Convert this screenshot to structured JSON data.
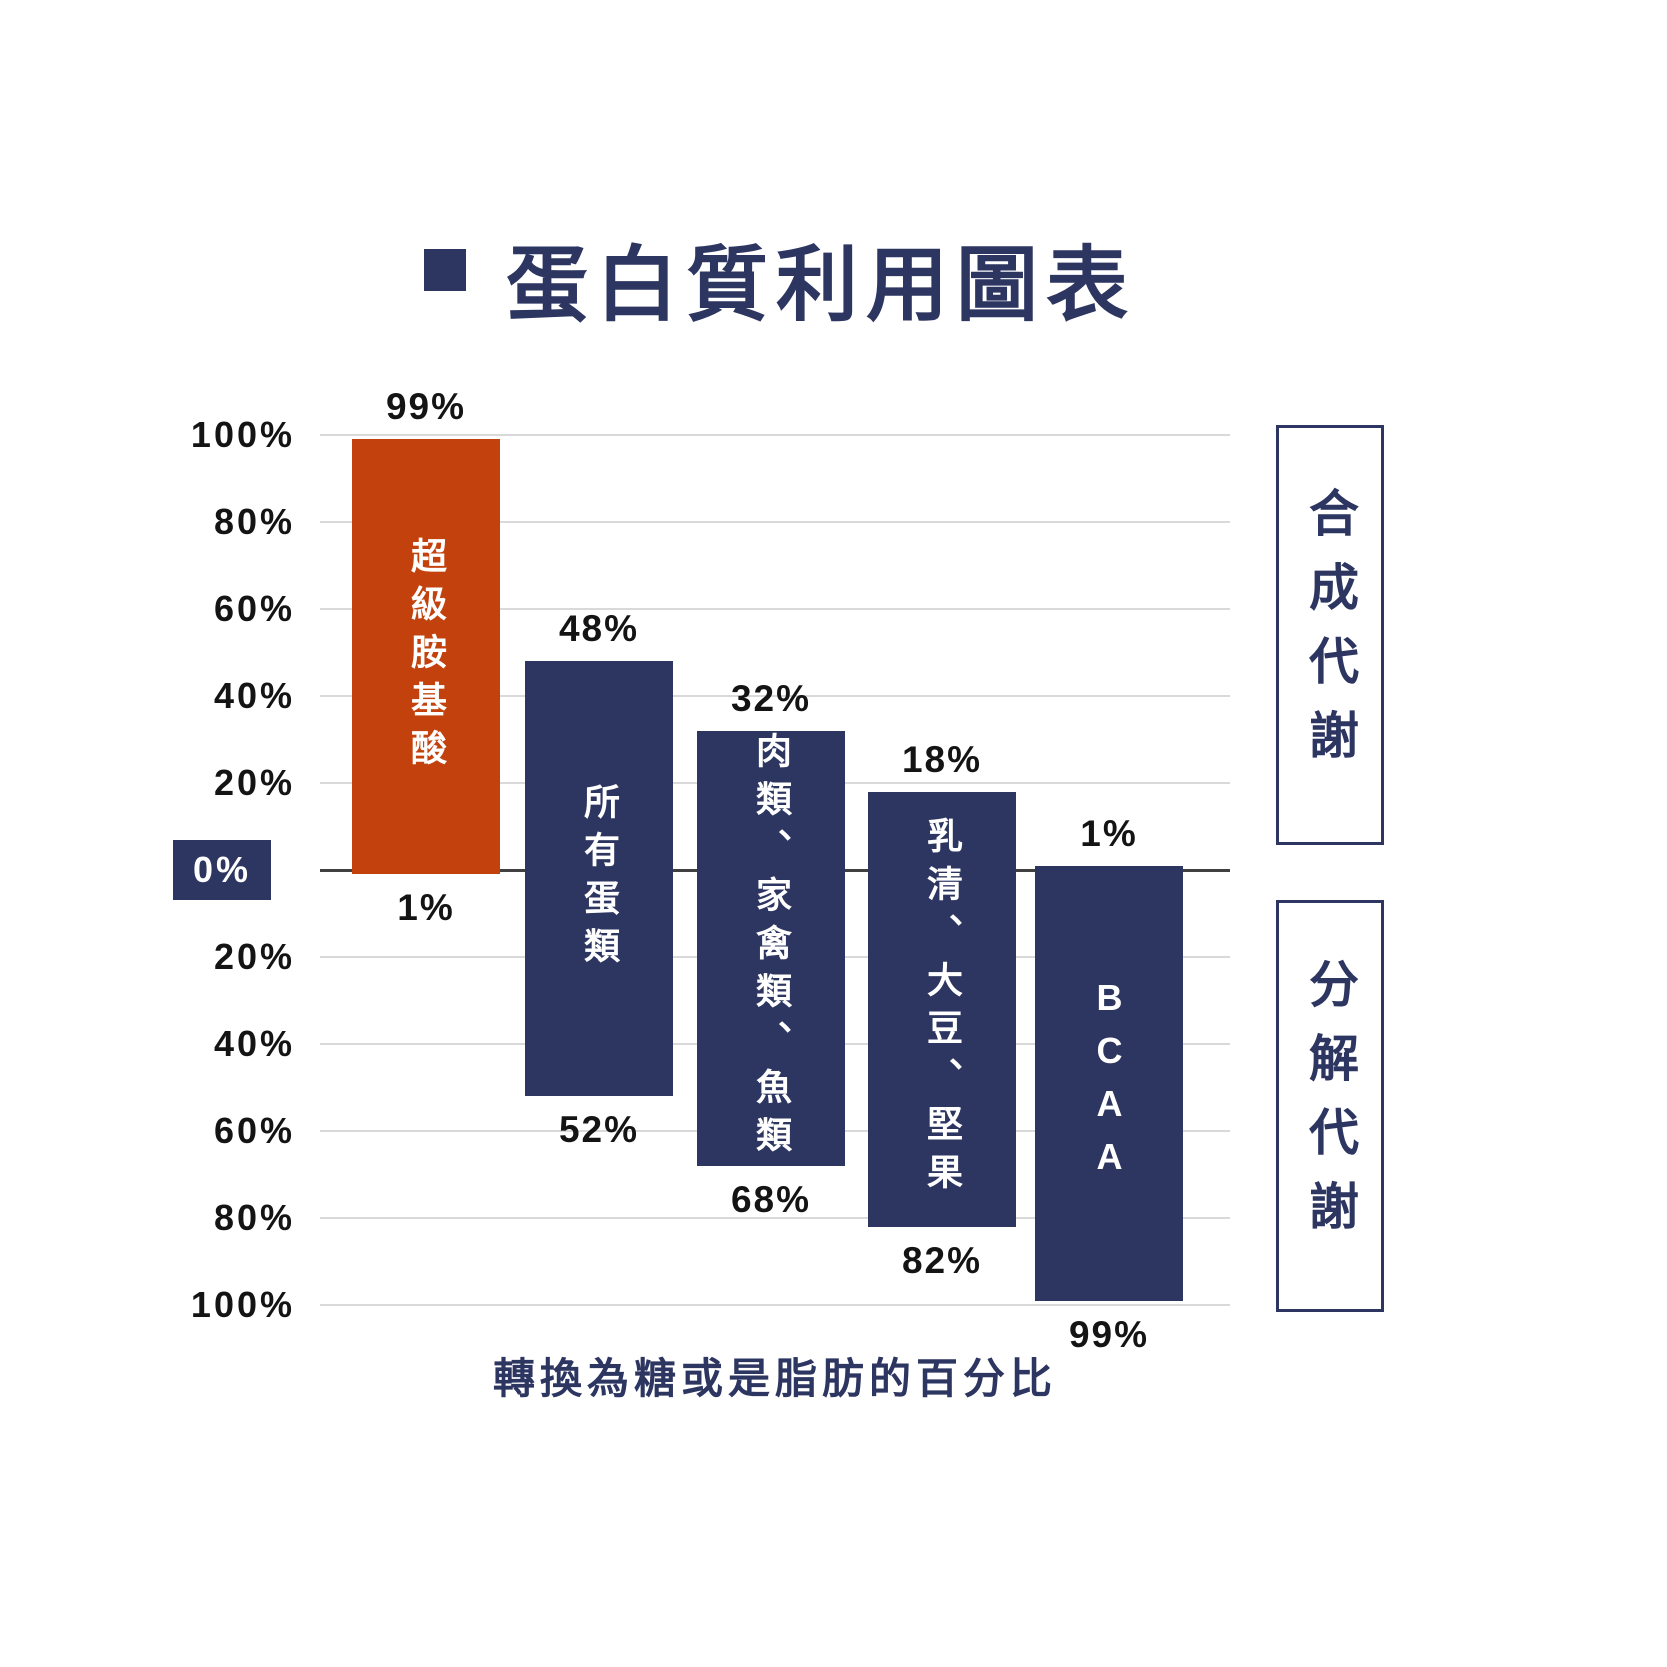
{
  "title": {
    "bullet": "■",
    "text": "蛋白質利用圖表"
  },
  "colors": {
    "navy": "#2d3561",
    "orange": "#c2410c",
    "grid": "#d9d9d9",
    "zero_line": "#404040",
    "label_text": "#141414"
  },
  "chart_data": {
    "type": "bar",
    "orientation": "diverging-vertical",
    "title": "蛋白質利用圖表",
    "xlabel": "轉換為糖或是脂肪的百分比",
    "ylabel": "",
    "grid": true,
    "axis": {
      "tick_labels": [
        "100%",
        "80%",
        "60%",
        "40%",
        "20%",
        "0%",
        "20%",
        "40%",
        "60%",
        "80%",
        "100%"
      ],
      "zero_index": 5,
      "unit": "%",
      "range_above_zero": [
        0,
        100
      ],
      "range_below_zero": [
        0,
        100
      ]
    },
    "right_labels": [
      "合成代謝",
      "分解代謝"
    ],
    "series": [
      {
        "name": "超級胺基酸",
        "above": 99,
        "below": 1,
        "above_label": "99%",
        "below_label": "1%",
        "color": "#c2410c"
      },
      {
        "name": "所有蛋類",
        "above": 48,
        "below": 52,
        "above_label": "48%",
        "below_label": "52%",
        "color": "#2d3561"
      },
      {
        "name": "肉類、家禽類、魚類",
        "above": 32,
        "below": 68,
        "above_label": "32%",
        "below_label": "68%",
        "color": "#2d3561"
      },
      {
        "name": "乳清、大豆、堅果",
        "above": 18,
        "below": 82,
        "above_label": "18%",
        "below_label": "82%",
        "color": "#2d3561"
      },
      {
        "name": "BCAA",
        "above": 1,
        "below": 99,
        "above_label": "1%",
        "below_label": "99%",
        "color": "#2d3561"
      }
    ]
  }
}
